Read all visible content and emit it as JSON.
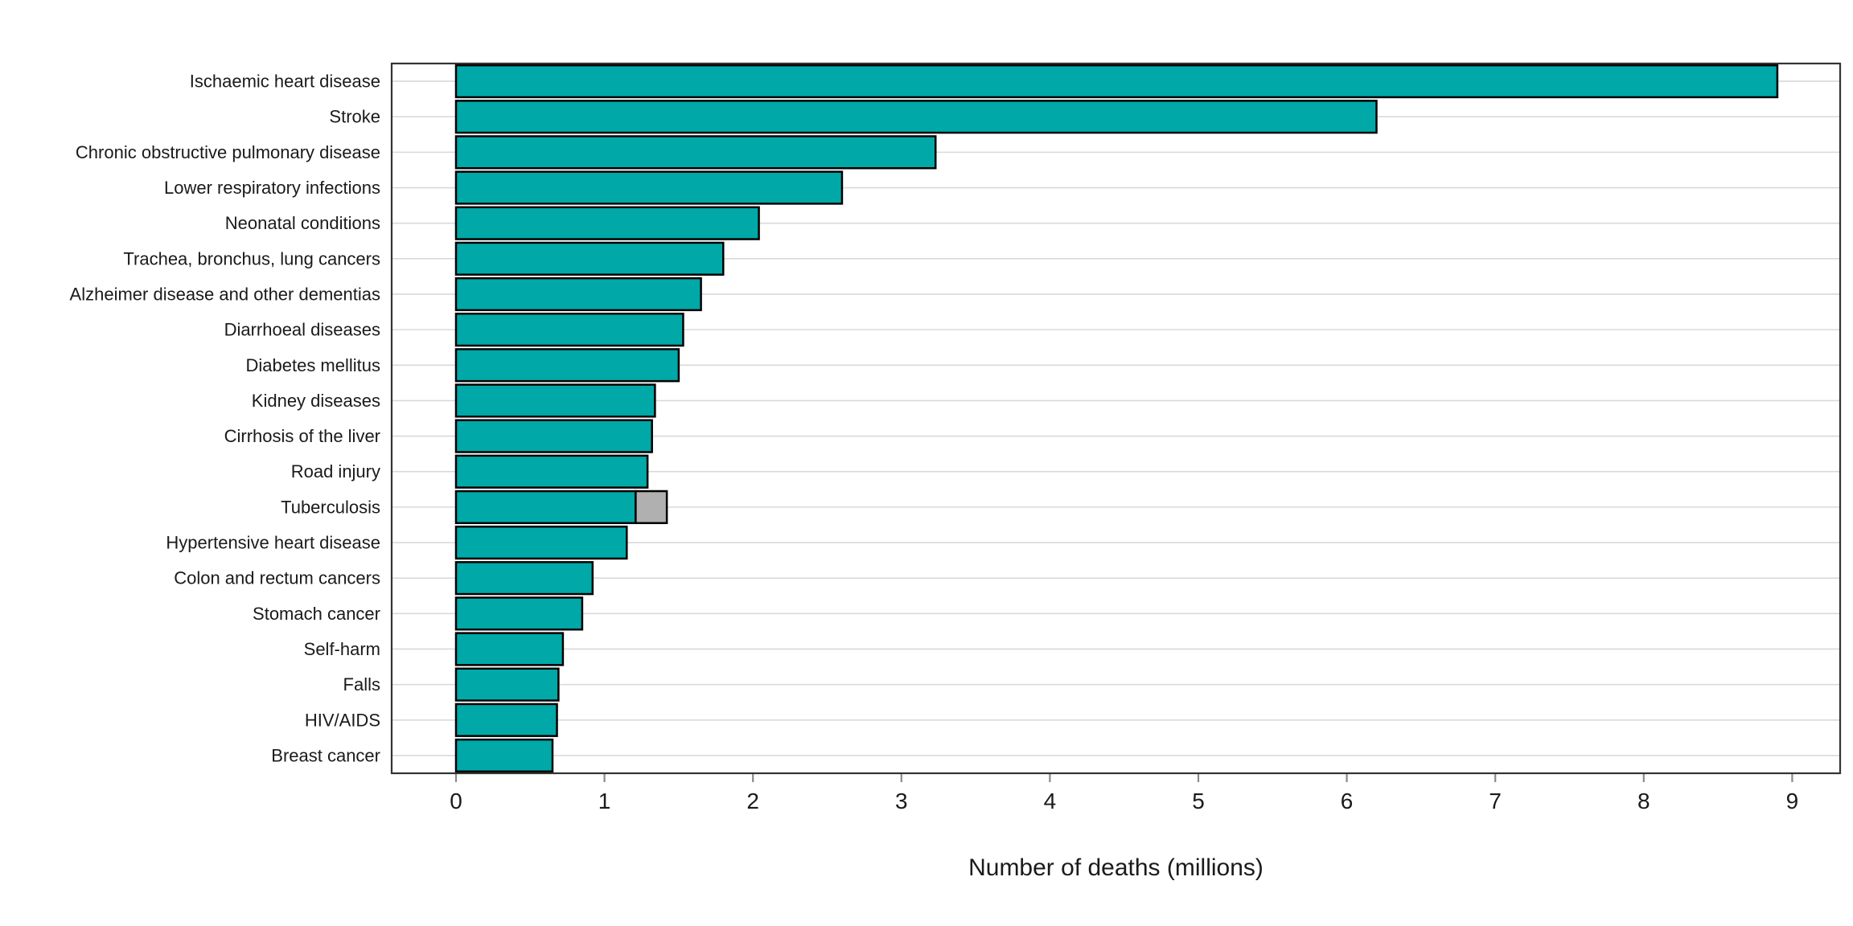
{
  "page": {
    "background_color": "#FFFFFF"
  },
  "chart_data": {
    "type": "bar",
    "orientation": "horizontal",
    "title": "",
    "xlabel": "Number of deaths (millions)",
    "ylabel": "",
    "x_ticks": [
      0,
      1,
      2,
      3,
      4,
      5,
      6,
      7,
      8,
      9
    ],
    "xlim": [
      -0.45,
      9.35
    ],
    "grid": "horizontal category gridlines only",
    "legend": "none",
    "categories": [
      "Ischaemic heart disease",
      "Stroke",
      "Chronic obstructive pulmonary disease",
      "Lower respiratory infections",
      "Neonatal conditions",
      "Trachea, bronchus, lung cancers",
      "Alzheimer disease and other dementias",
      "Diarrhoeal diseases",
      "Diabetes mellitus",
      "Kidney diseases",
      "Cirrhosis of the liver",
      "Road injury",
      "Tuberculosis",
      "Hypertensive heart disease",
      "Colon and rectum cancers",
      "Stomach cancer",
      "Self-harm",
      "Falls",
      "HIV/AIDS",
      "Breast cancer"
    ],
    "values": [
      8.9,
      6.2,
      3.23,
      2.6,
      2.04,
      1.8,
      1.65,
      1.53,
      1.5,
      1.34,
      1.32,
      1.29,
      1.21,
      1.15,
      0.92,
      0.85,
      0.72,
      0.69,
      0.68,
      0.65
    ],
    "extra_segments": [
      {
        "category": "Tuberculosis",
        "start": 1.21,
        "value": 0.21,
        "color": "#B0B0B0"
      }
    ],
    "colors": {
      "bar_fill": "#00A8A8",
      "extra_segment_fill": "#B0B0B0",
      "bar_outline": "#000000",
      "gridline": "#D9D9D9",
      "panel_border": "#333333",
      "tick_mark": "#8A8A8A",
      "tick_label": "#1A1A1A",
      "category_label": "#1A1A1A",
      "axis_title": "#1A1A1A",
      "background": "#FFFFFF"
    }
  }
}
